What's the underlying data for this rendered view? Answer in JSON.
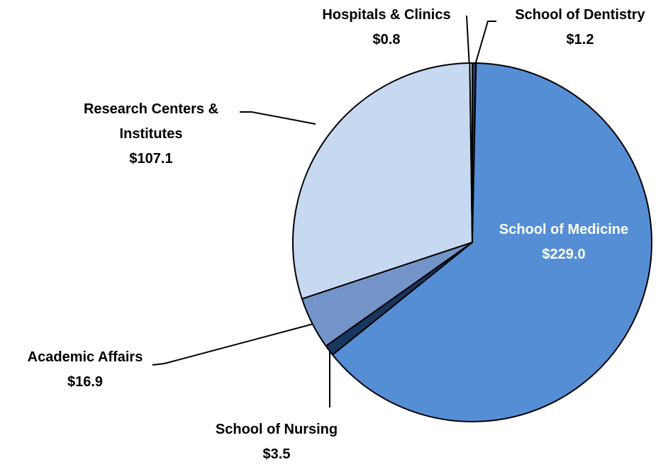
{
  "chart_data": {
    "type": "pie",
    "categories": [
      "School of Dentistry",
      "School of Medicine",
      "School of Nursing",
      "Academic Affairs",
      "Research Centers & Institutes",
      "Hospitals & Clinics"
    ],
    "values": [
      1.2,
      229.0,
      3.5,
      16.9,
      107.1,
      0.8
    ],
    "value_labels": [
      "$1.2",
      "$229.0",
      "$3.5",
      "$16.9",
      "$107.1",
      "$0.8"
    ],
    "colors": [
      "#1f3864",
      "#558ed5",
      "#17375e",
      "#7394c8",
      "#c6d9f1",
      "#dbe5f1"
    ]
  }
}
